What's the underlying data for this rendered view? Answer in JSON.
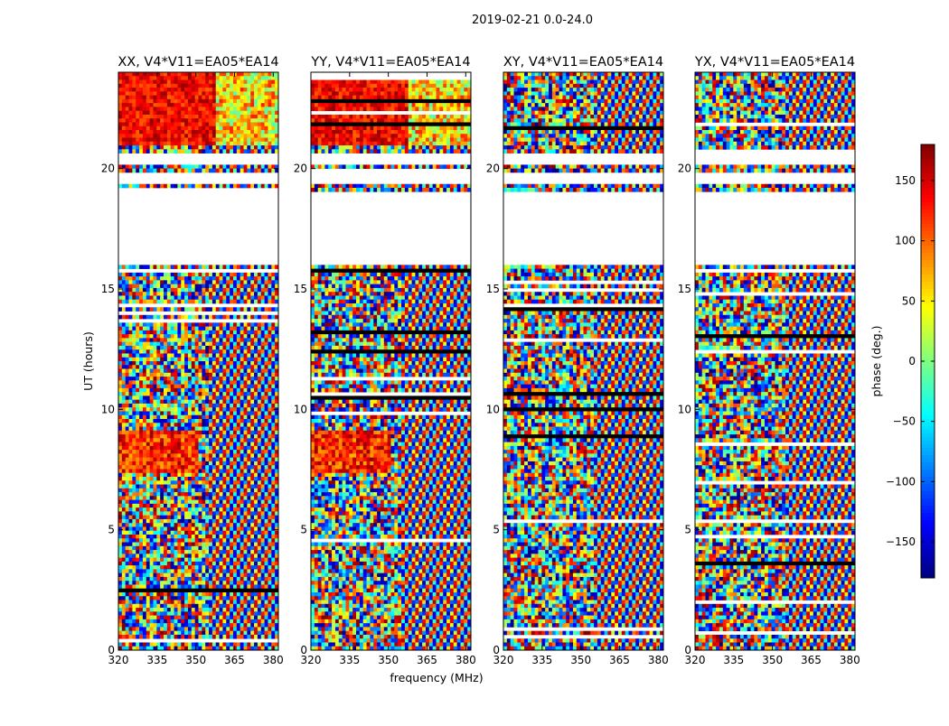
{
  "chart_data": {
    "type": "heatmap",
    "title": "2019-02-21 0.0-24.0",
    "xlabel": "frequency (MHz)",
    "ylabel": "UT (hours)",
    "x_range": [
      320,
      382
    ],
    "y_range": [
      0,
      24
    ],
    "x_ticks": [
      320,
      335,
      350,
      365,
      380
    ],
    "y_ticks": [
      0,
      5,
      10,
      15,
      20
    ],
    "colorbar": {
      "label": "phase (deg.)",
      "range": [
        -180,
        180
      ],
      "ticks": [
        150,
        100,
        50,
        0,
        -50,
        -100,
        -150
      ],
      "tick_labels": [
        "150",
        "100",
        "50",
        "0",
        "−50",
        "−100",
        "−150"
      ],
      "colormap": "jet"
    },
    "panels": [
      {
        "title": "XX, V4*V11=EA05*EA14",
        "pol": "XX"
      },
      {
        "title": "YY, V4*V11=EA05*EA14",
        "pol": "YY"
      },
      {
        "title": "XY, V4*V11=EA05*EA14",
        "pol": "XY"
      },
      {
        "title": "YX, V4*V11=EA05*EA14",
        "pol": "YX"
      }
    ],
    "data_gaps_ut_hours": [
      [
        16.0,
        19.1
      ],
      [
        19.4,
        19.8
      ],
      [
        20.1,
        20.6
      ]
    ]
  }
}
